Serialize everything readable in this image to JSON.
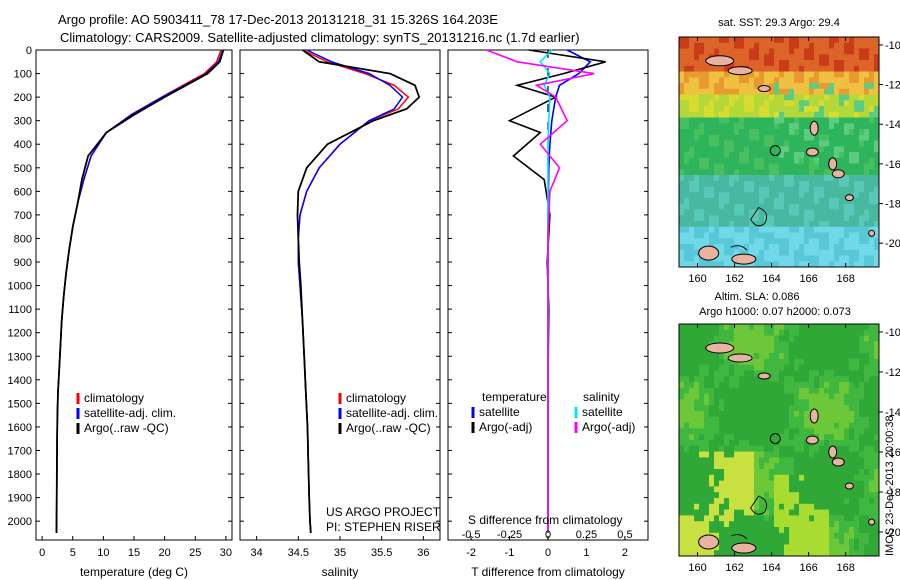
{
  "title_line1": "Argo profile: AO 5903411_78 17-Dec-2013 20131218_31 15.326S 164.203E",
  "title_line2": "Climatology: CARS2009. Satellite-adjusted climatology: synTS_20131216.nc (1.7d earlier)",
  "colors": {
    "climatology": "#ff0000",
    "satellite": "#0000ff",
    "argo": "#000000",
    "sal_satellite": "#00e5ff",
    "sal_argo": "#ff00ff",
    "land": "#e8b4a0"
  },
  "depth_ticks": [
    0,
    100,
    200,
    300,
    400,
    500,
    600,
    700,
    800,
    900,
    1000,
    1100,
    1200,
    1300,
    1400,
    1500,
    1600,
    1700,
    1800,
    1900,
    2000
  ],
  "chart_data": [
    {
      "type": "line",
      "panel": "temperature",
      "xlabel": "temperature (deg C)",
      "xlim": [
        -1,
        31
      ],
      "xticks": [
        "0",
        "5",
        "10",
        "15",
        "20",
        "25",
        "30"
      ],
      "ylim": [
        2080,
        0
      ],
      "legend": [
        "climatology",
        "satellite-adj. clim.",
        "Argo(..raw -QC)"
      ],
      "series": [
        {
          "name": "climatology",
          "x": [
            29.2,
            28.5,
            26.5,
            23,
            19.5,
            14.5,
            10.5,
            8,
            6.8,
            5.8,
            5,
            4.4,
            3.9,
            3.5,
            3.2,
            3,
            2.8,
            2.6,
            2.5,
            2.45,
            2.4,
            2.35
          ],
          "y": [
            0,
            50,
            100,
            150,
            200,
            275,
            350,
            450,
            550,
            650,
            750,
            850,
            950,
            1050,
            1150,
            1250,
            1350,
            1450,
            1550,
            1650,
            1850,
            2050
          ]
        },
        {
          "name": "satellite-adj. clim.",
          "x": [
            29.5,
            28.8,
            26.8,
            23.3,
            19.6,
            14.6,
            10.5,
            8,
            6.8,
            5.8,
            5,
            4.4,
            3.9,
            3.5,
            3.2,
            3,
            2.8,
            2.6,
            2.5,
            2.45,
            2.4,
            2.35
          ],
          "y": [
            0,
            50,
            100,
            150,
            200,
            275,
            350,
            450,
            550,
            650,
            750,
            850,
            950,
            1050,
            1150,
            1250,
            1350,
            1450,
            1550,
            1650,
            1850,
            2050
          ]
        },
        {
          "name": "Argo(..raw -QC)",
          "x": [
            29.6,
            29,
            27,
            23.5,
            20,
            15,
            10.5,
            7.5,
            6.5,
            5.8,
            5,
            4.4,
            3.9,
            3.5,
            3.2,
            3,
            2.8,
            2.6,
            2.5,
            2.45,
            2.4,
            2.35
          ],
          "y": [
            0,
            50,
            100,
            150,
            200,
            275,
            350,
            450,
            550,
            650,
            750,
            850,
            950,
            1050,
            1150,
            1250,
            1350,
            1450,
            1550,
            1650,
            1850,
            2050
          ]
        }
      ]
    },
    {
      "type": "line",
      "panel": "salinity",
      "xlabel": "salinity",
      "xlim": [
        33.8,
        36.2
      ],
      "xticks": [
        "34",
        "34.5",
        "35",
        "35.5",
        "36"
      ],
      "ylim": [
        2080,
        0
      ],
      "legend": [
        "climatology",
        "satellite-adj. clim.",
        "Argo(..raw -QC)"
      ],
      "credit": [
        "US ARGO PROJECT",
        "PI: STEPHEN RISER"
      ],
      "series": [
        {
          "name": "climatology",
          "x": [
            34.55,
            34.85,
            35.3,
            35.65,
            35.82,
            35.7,
            35.35,
            35,
            34.75,
            34.6,
            34.52,
            34.5,
            34.5,
            34.52,
            34.55,
            34.57,
            34.59,
            34.61,
            34.62,
            34.63,
            34.64,
            34.65
          ],
          "y": [
            0,
            50,
            100,
            150,
            200,
            250,
            300,
            400,
            500,
            600,
            700,
            800,
            900,
            1000,
            1150,
            1300,
            1450,
            1600,
            1750,
            1900,
            2000,
            2050
          ]
        },
        {
          "name": "satellite-adj. clim.",
          "x": [
            34.6,
            34.9,
            35.35,
            35.6,
            35.75,
            35.65,
            35.35,
            35,
            34.75,
            34.6,
            34.52,
            34.5,
            34.5,
            34.52,
            34.55,
            34.57,
            34.59,
            34.61,
            34.62,
            34.63,
            34.64,
            34.65
          ],
          "y": [
            0,
            50,
            100,
            150,
            200,
            250,
            300,
            400,
            500,
            600,
            700,
            800,
            900,
            1000,
            1150,
            1300,
            1450,
            1600,
            1750,
            1900,
            2000,
            2050
          ]
        },
        {
          "name": "Argo(..raw -QC)",
          "x": [
            34.55,
            34.75,
            35.6,
            35.9,
            35.95,
            35.8,
            35.4,
            34.85,
            34.6,
            34.5,
            34.49,
            34.5,
            34.51,
            34.53,
            34.55,
            34.57,
            34.59,
            34.61,
            34.62,
            34.63,
            34.64,
            34.65
          ],
          "y": [
            0,
            50,
            100,
            150,
            200,
            250,
            300,
            400,
            500,
            600,
            700,
            800,
            900,
            1000,
            1150,
            1300,
            1450,
            1600,
            1750,
            1900,
            2000,
            2050
          ]
        }
      ]
    },
    {
      "type": "line",
      "panel": "difference",
      "xlabel": "T difference from climatology",
      "xlabel_top": "S difference from climatology",
      "xlim": [
        -2.6,
        2.6
      ],
      "xticks": [
        "-2",
        "-1",
        "0",
        "1",
        "2"
      ],
      "xticks_top": [
        "-0.5",
        "-0.25",
        "0",
        "0.25",
        "0.5"
      ],
      "ylim": [
        2080,
        0
      ],
      "legend_headers": [
        "temperature",
        "salinity"
      ],
      "legend": [
        "satellite",
        "Argo(-adj)",
        "satellite",
        "Argo(-adj)"
      ],
      "series": [
        {
          "name": "temperature satellite",
          "x": [
            0.5,
            1.1,
            0.8,
            0.3,
            0.2,
            0.1,
            0.05,
            0.02,
            0,
            0,
            0,
            0,
            0,
            0,
            0
          ],
          "y": [
            0,
            50,
            100,
            150,
            200,
            300,
            400,
            500,
            700,
            900,
            1100,
            1300,
            1500,
            1800,
            2050
          ]
        },
        {
          "name": "temperature Argo(-adj)",
          "x": [
            -0.5,
            1.5,
            0.4,
            -0.8,
            0.2,
            -1,
            -0.2,
            -0.9,
            -0.1,
            0.05,
            -0.02,
            0.02,
            0,
            0,
            0
          ],
          "y": [
            0,
            50,
            100,
            150,
            200,
            300,
            350,
            450,
            550,
            700,
            900,
            1100,
            1400,
            1700,
            2050
          ]
        },
        {
          "name": "salinity satellite",
          "x": [
            0.1,
            -0.2,
            0.05,
            -0.1,
            0.05,
            0.02,
            0,
            0,
            0,
            0,
            0,
            0
          ],
          "y": [
            0,
            50,
            100,
            150,
            200,
            300,
            400,
            600,
            800,
            1200,
            1600,
            2050
          ]
        },
        {
          "name": "salinity Argo(-adj)",
          "x": [
            -1.6,
            -0.8,
            1.2,
            -0.3,
            0.2,
            0.5,
            -0.2,
            0.3,
            0.05,
            0,
            0,
            0
          ],
          "y": [
            0,
            50,
            100,
            150,
            200,
            300,
            400,
            500,
            600,
            800,
            1200,
            2050
          ]
        }
      ]
    },
    {
      "type": "heatmap",
      "panel": "sst_map",
      "title": "sat. SST: 29.3 Argo: 29.4",
      "xlim": [
        159,
        169.8
      ],
      "ylim": [
        -21.2,
        -9.6
      ],
      "xticks": [
        "160",
        "162",
        "164",
        "166",
        "168"
      ],
      "yticks": [
        "-10",
        "-12",
        "-14",
        "-16",
        "-18",
        "-20"
      ],
      "marker": [
        164.2,
        -15.33
      ]
    },
    {
      "type": "heatmap",
      "panel": "sla_map",
      "title": "Altim. SLA: 0.086",
      "subtitle": "Argo h1000: 0.07 h2000: 0.073",
      "xlim": [
        159,
        169.8
      ],
      "ylim": [
        -21.2,
        -9.6
      ],
      "xticks": [
        "160",
        "162",
        "164",
        "166",
        "168"
      ],
      "yticks": [
        "-10",
        "-12",
        "-14",
        "-16",
        "-18",
        "-20"
      ],
      "marker": [
        164.2,
        -15.33
      ]
    }
  ],
  "footer_stamp": "IMOS 23-Dec-2013 20:00:38"
}
